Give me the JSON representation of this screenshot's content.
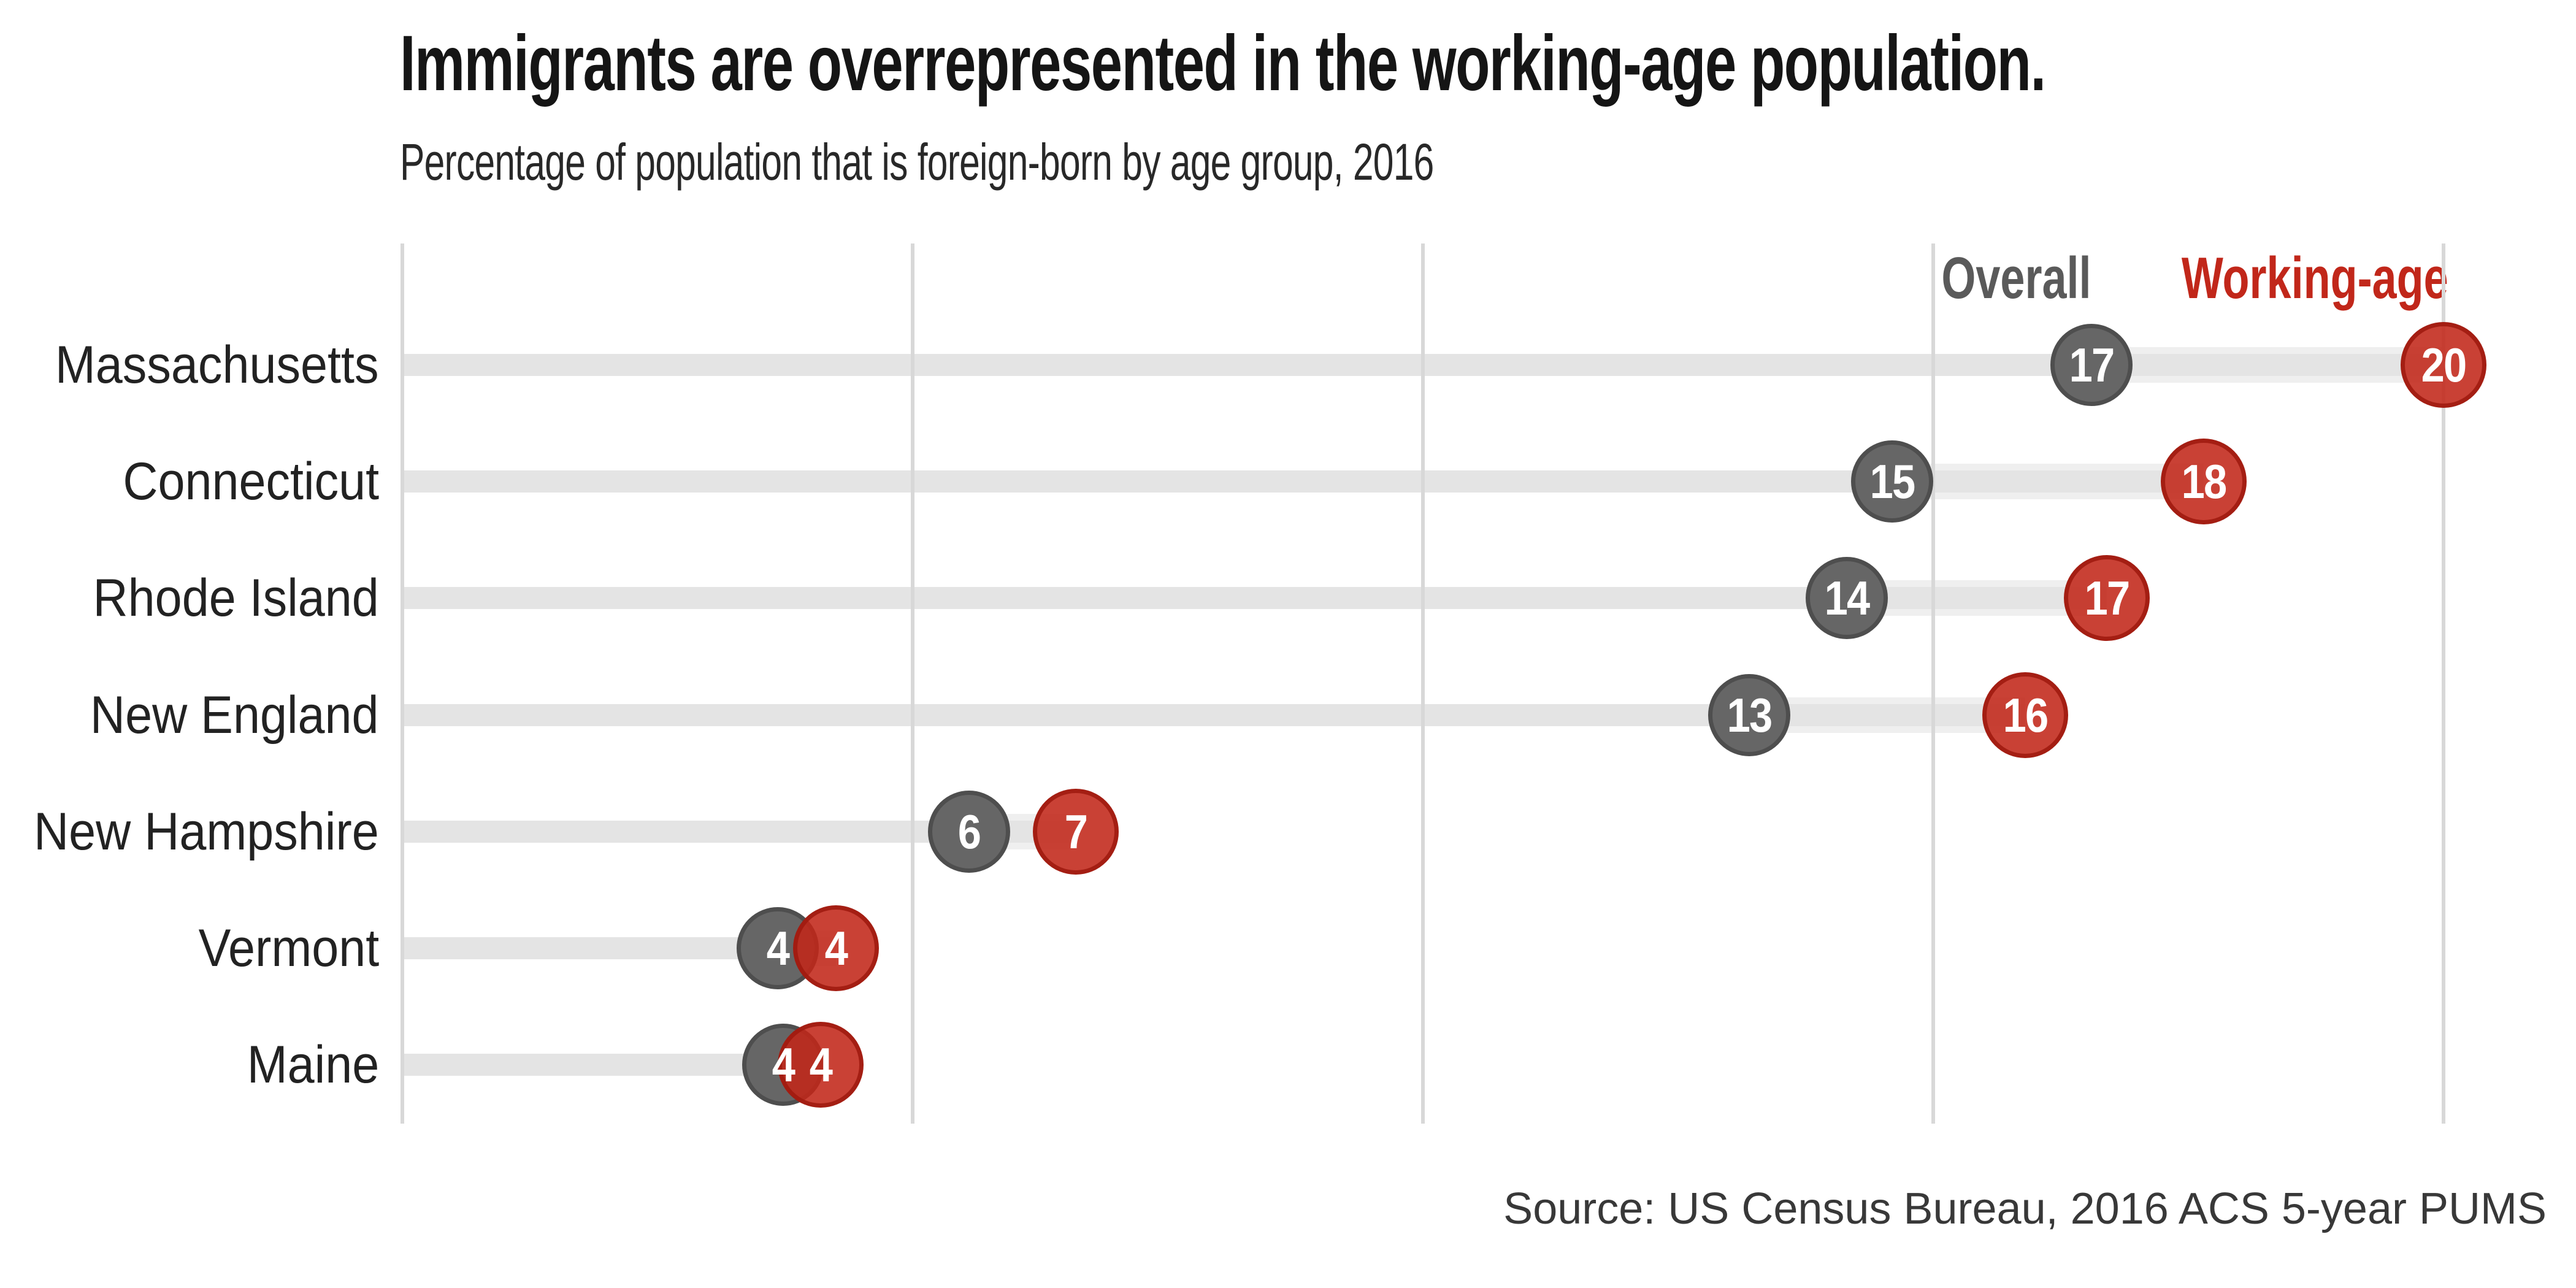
{
  "chart_data": {
    "type": "dumbbell",
    "title": "Immigrants are overrepresented in the working-age population.",
    "subtitle": "Percentage of population that is foreign-born by age group, 2016",
    "source": "Source: US Census Bureau, 2016 ACS 5-year PUMS",
    "categories": [
      "Massachusetts",
      "Connecticut",
      "Rhode Island",
      "New England",
      "New Hampshire",
      "Vermont",
      "Maine"
    ],
    "series": [
      {
        "name": "Overall",
        "color": "#666666",
        "values": [
          17,
          15,
          14,
          13,
          6,
          4,
          4
        ],
        "positions": [
          16.55,
          14.6,
          14.15,
          13.2,
          5.55,
          3.68,
          3.73
        ]
      },
      {
        "name": "Working-age",
        "color": "#c23322",
        "values": [
          20,
          18,
          17,
          16,
          7,
          4,
          4
        ],
        "positions": [
          20.0,
          17.65,
          16.7,
          15.9,
          6.6,
          4.25,
          4.1
        ]
      }
    ],
    "xlim": [
      0,
      20
    ],
    "gridline_values": [
      0,
      5,
      10,
      15,
      20
    ],
    "axis_tick_labels_shown": false,
    "grid": true,
    "legend_position": "top-right"
  },
  "colors": {
    "overall_dot": "#666666",
    "overall_dot_border": "#4e4e4e",
    "working_dot_rgba": "rgba(193,39,25,0.88)",
    "working_dot_border_rgba": "rgba(160,27,16,0.9)",
    "track": "#e4e4e4",
    "connector": "#efefef",
    "gridline": "#d8d8d8",
    "legend_overall_text": "#5a5a5a",
    "legend_working_text": "#c1271a"
  }
}
